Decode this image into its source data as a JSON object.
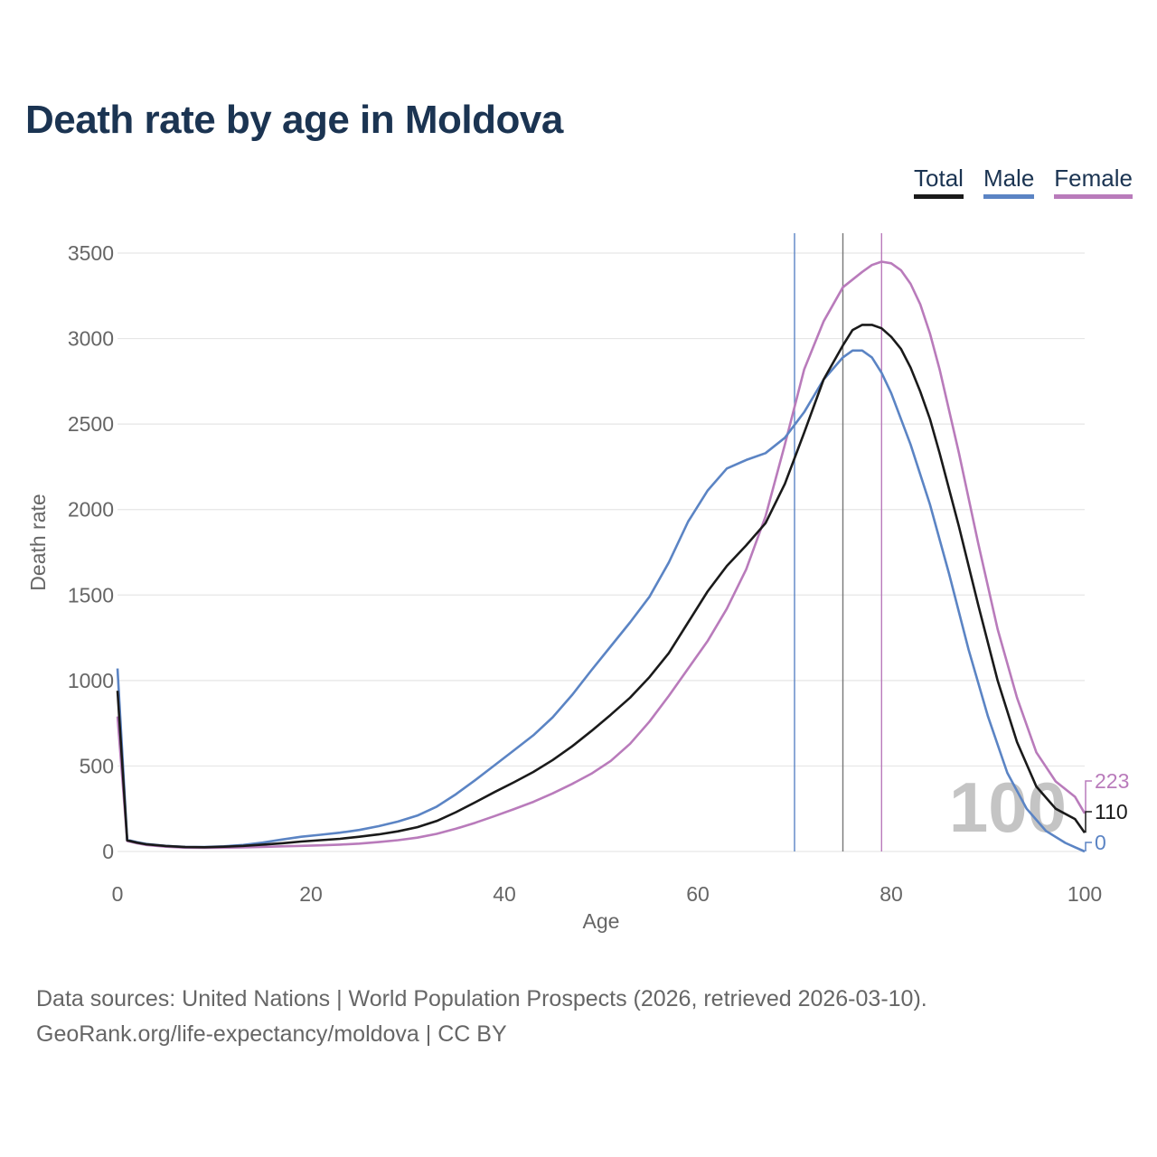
{
  "title": "Death rate by age in Moldova",
  "legend": [
    {
      "label": "Total",
      "color": "#1a1a1a"
    },
    {
      "label": "Male",
      "color": "#5b84c4"
    },
    {
      "label": "Female",
      "color": "#b97bbb"
    }
  ],
  "footer": {
    "line1": "Data sources: United Nations | World Population Prospects (2026, retrieved 2026-03-10).",
    "line2": "GeoRank.org/life-expectancy/moldova | CC BY"
  },
  "chart_data": {
    "type": "line",
    "xlabel": "Age",
    "ylabel": "Death rate",
    "xlim": [
      0,
      100
    ],
    "ylim": [
      0,
      3500
    ],
    "xticks": [
      0,
      20,
      40,
      60,
      80,
      100
    ],
    "yticks": [
      0,
      500,
      1000,
      1500,
      2000,
      2500,
      3000,
      3500
    ],
    "watermark": "100",
    "life_expectancy_lines": [
      {
        "series": "Male",
        "age": 70
      },
      {
        "series": "Total",
        "age": 75
      },
      {
        "series": "Female",
        "age": 79
      }
    ],
    "end_labels": [
      {
        "series": "Female",
        "text": "223"
      },
      {
        "series": "Total",
        "text": "110"
      },
      {
        "series": "Male",
        "text": "0"
      }
    ],
    "series": [
      {
        "name": "Total",
        "color": "#1a1a1a",
        "points": [
          [
            0,
            940
          ],
          [
            1,
            65
          ],
          [
            2,
            52
          ],
          [
            3,
            42
          ],
          [
            5,
            32
          ],
          [
            7,
            26
          ],
          [
            9,
            25
          ],
          [
            11,
            28
          ],
          [
            13,
            33
          ],
          [
            15,
            40
          ],
          [
            17,
            48
          ],
          [
            19,
            58
          ],
          [
            21,
            66
          ],
          [
            23,
            74
          ],
          [
            25,
            86
          ],
          [
            27,
            100
          ],
          [
            29,
            118
          ],
          [
            31,
            142
          ],
          [
            33,
            178
          ],
          [
            35,
            230
          ],
          [
            37,
            288
          ],
          [
            39,
            348
          ],
          [
            41,
            405
          ],
          [
            43,
            465
          ],
          [
            45,
            535
          ],
          [
            47,
            615
          ],
          [
            49,
            705
          ],
          [
            51,
            800
          ],
          [
            53,
            900
          ],
          [
            55,
            1020
          ],
          [
            57,
            1160
          ],
          [
            59,
            1340
          ],
          [
            61,
            1520
          ],
          [
            63,
            1670
          ],
          [
            65,
            1790
          ],
          [
            67,
            1920
          ],
          [
            69,
            2150
          ],
          [
            71,
            2450
          ],
          [
            73,
            2760
          ],
          [
            75,
            2960
          ],
          [
            76,
            3050
          ],
          [
            77,
            3080
          ],
          [
            78,
            3080
          ],
          [
            79,
            3060
          ],
          [
            80,
            3010
          ],
          [
            81,
            2940
          ],
          [
            82,
            2830
          ],
          [
            83,
            2690
          ],
          [
            84,
            2530
          ],
          [
            85,
            2330
          ],
          [
            87,
            1900
          ],
          [
            89,
            1440
          ],
          [
            91,
            1000
          ],
          [
            93,
            640
          ],
          [
            95,
            380
          ],
          [
            97,
            250
          ],
          [
            99,
            190
          ],
          [
            100,
            110
          ]
        ]
      },
      {
        "name": "Male",
        "color": "#5b84c4",
        "points": [
          [
            0,
            1070
          ],
          [
            1,
            68
          ],
          [
            2,
            55
          ],
          [
            3,
            44
          ],
          [
            5,
            33
          ],
          [
            7,
            27
          ],
          [
            9,
            26
          ],
          [
            11,
            30
          ],
          [
            13,
            38
          ],
          [
            15,
            52
          ],
          [
            17,
            70
          ],
          [
            19,
            86
          ],
          [
            21,
            98
          ],
          [
            23,
            110
          ],
          [
            25,
            126
          ],
          [
            27,
            148
          ],
          [
            29,
            175
          ],
          [
            31,
            210
          ],
          [
            33,
            262
          ],
          [
            35,
            335
          ],
          [
            37,
            418
          ],
          [
            39,
            505
          ],
          [
            41,
            592
          ],
          [
            43,
            680
          ],
          [
            45,
            785
          ],
          [
            47,
            915
          ],
          [
            49,
            1060
          ],
          [
            51,
            1200
          ],
          [
            53,
            1340
          ],
          [
            55,
            1490
          ],
          [
            57,
            1690
          ],
          [
            59,
            1930
          ],
          [
            61,
            2110
          ],
          [
            63,
            2240
          ],
          [
            65,
            2290
          ],
          [
            67,
            2330
          ],
          [
            69,
            2420
          ],
          [
            71,
            2570
          ],
          [
            73,
            2760
          ],
          [
            75,
            2890
          ],
          [
            76,
            2930
          ],
          [
            77,
            2930
          ],
          [
            78,
            2890
          ],
          [
            79,
            2800
          ],
          [
            80,
            2680
          ],
          [
            82,
            2380
          ],
          [
            84,
            2030
          ],
          [
            86,
            1620
          ],
          [
            88,
            1180
          ],
          [
            90,
            790
          ],
          [
            92,
            460
          ],
          [
            94,
            250
          ],
          [
            96,
            120
          ],
          [
            98,
            50
          ],
          [
            99,
            25
          ],
          [
            100,
            0
          ]
        ]
      },
      {
        "name": "Female",
        "color": "#b97bbb",
        "points": [
          [
            0,
            790
          ],
          [
            1,
            62
          ],
          [
            2,
            48
          ],
          [
            3,
            38
          ],
          [
            5,
            28
          ],
          [
            7,
            22
          ],
          [
            9,
            21
          ],
          [
            11,
            22
          ],
          [
            13,
            24
          ],
          [
            15,
            27
          ],
          [
            17,
            30
          ],
          [
            19,
            33
          ],
          [
            21,
            36
          ],
          [
            23,
            40
          ],
          [
            25,
            46
          ],
          [
            27,
            55
          ],
          [
            29,
            66
          ],
          [
            31,
            81
          ],
          [
            33,
            103
          ],
          [
            35,
            133
          ],
          [
            37,
            168
          ],
          [
            39,
            207
          ],
          [
            41,
            248
          ],
          [
            43,
            290
          ],
          [
            45,
            340
          ],
          [
            47,
            395
          ],
          [
            49,
            455
          ],
          [
            51,
            530
          ],
          [
            53,
            630
          ],
          [
            55,
            760
          ],
          [
            57,
            910
          ],
          [
            59,
            1070
          ],
          [
            61,
            1230
          ],
          [
            63,
            1420
          ],
          [
            65,
            1650
          ],
          [
            67,
            1960
          ],
          [
            69,
            2380
          ],
          [
            71,
            2820
          ],
          [
            73,
            3100
          ],
          [
            75,
            3300
          ],
          [
            77,
            3390
          ],
          [
            78,
            3430
          ],
          [
            79,
            3450
          ],
          [
            80,
            3440
          ],
          [
            81,
            3400
          ],
          [
            82,
            3320
          ],
          [
            83,
            3200
          ],
          [
            84,
            3030
          ],
          [
            85,
            2820
          ],
          [
            87,
            2330
          ],
          [
            89,
            1800
          ],
          [
            91,
            1300
          ],
          [
            93,
            900
          ],
          [
            95,
            580
          ],
          [
            97,
            410
          ],
          [
            99,
            320
          ],
          [
            100,
            223
          ]
        ]
      }
    ]
  }
}
